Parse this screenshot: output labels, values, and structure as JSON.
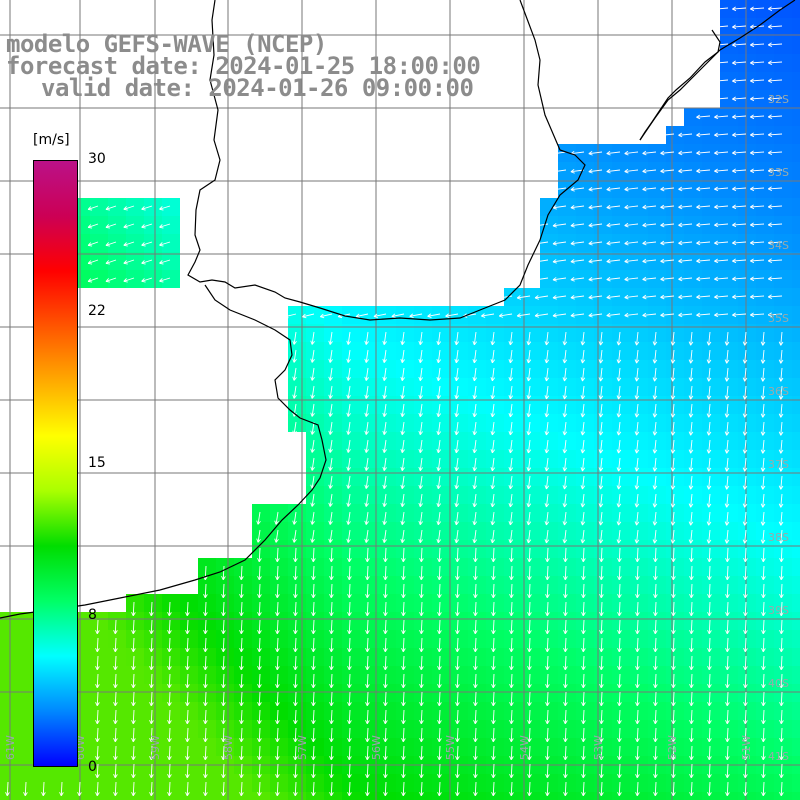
{
  "title": {
    "model": "modelo GEFS-WAVE (NCEP)",
    "forecast": "forecast date: 2024-01-25 18:00:00",
    "valid": "valid date: 2024-01-26 09:00:00"
  },
  "colorbar": {
    "unit": "[m/s]",
    "ticks": [
      "30",
      "22",
      "15",
      "8",
      "0"
    ],
    "tick_values": [
      30,
      22,
      15,
      8,
      0
    ],
    "min": 0,
    "max": 30,
    "colors": [
      "#0000ff",
      "#0088ff",
      "#00ffff",
      "#00ff66",
      "#00dd00",
      "#aaff00",
      "#ffff00",
      "#ffaa00",
      "#ff5500",
      "#ff0000",
      "#cc0055",
      "#bb1188"
    ]
  },
  "grid": {
    "lat_labels": [
      "32S",
      "33S",
      "34S",
      "35S",
      "36S",
      "37S",
      "38S",
      "39S",
      "40S",
      "41S"
    ],
    "lon_labels": [
      "61W",
      "60W",
      "59W",
      "58W",
      "57W",
      "56W",
      "55W",
      "54W",
      "53W",
      "52W",
      "51W"
    ]
  },
  "wind": {
    "description_colors": {
      "land": "#ffffff",
      "coast": "#000000",
      "arrows": "#ffffff"
    }
  }
}
